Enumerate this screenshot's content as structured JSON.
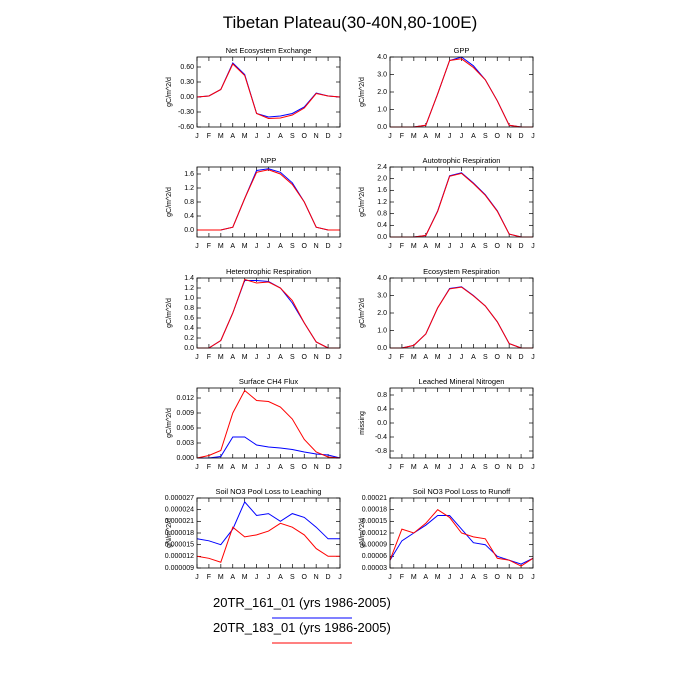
{
  "title": "Tibetan Plateau(30-40N,80-100E)",
  "legend": [
    {
      "name": "20TR_161_01 (yrs 1986-2005)",
      "color": "#0000ff"
    },
    {
      "name": "20TR_183_01 (yrs 1986-2005)",
      "color": "#ff0000"
    }
  ],
  "chart_data": [
    {
      "type": "line",
      "title": "Net Ecosystem Exchange",
      "ylabel": "gC/m^2/d",
      "categories": [
        "J",
        "F",
        "M",
        "A",
        "M",
        "J",
        "J",
        "A",
        "S",
        "O",
        "N",
        "D",
        "J"
      ],
      "ylim": [
        -0.6,
        0.8
      ],
      "yticks": [
        {
          "value": -0.6,
          "label": "-0.60"
        },
        {
          "value": -0.3,
          "label": "-0.30"
        },
        {
          "value": 0,
          "label": "0.00"
        },
        {
          "value": 0.3,
          "label": "0.30"
        },
        {
          "value": 0.6,
          "label": "0.60"
        }
      ],
      "series": [
        {
          "values": [
            0,
            0.02,
            0.15,
            0.68,
            0.45,
            -0.33,
            -0.4,
            -0.38,
            -0.33,
            -0.2,
            0.08,
            0.02,
            0
          ]
        },
        {
          "values": [
            0,
            0.02,
            0.15,
            0.66,
            0.43,
            -0.33,
            -0.43,
            -0.42,
            -0.36,
            -0.22,
            0.07,
            0.02,
            0
          ]
        }
      ]
    },
    {
      "type": "line",
      "title": "GPP",
      "ylabel": "gC/m^2/d",
      "categories": [
        "J",
        "F",
        "M",
        "A",
        "M",
        "J",
        "J",
        "A",
        "S",
        "O",
        "N",
        "D",
        "J"
      ],
      "ylim": [
        0,
        4
      ],
      "yticks": [
        {
          "value": 0,
          "label": "0.0"
        },
        {
          "value": 1,
          "label": "1.0"
        },
        {
          "value": 2,
          "label": "2.0"
        },
        {
          "value": 3,
          "label": "3.0"
        },
        {
          "value": 4,
          "label": "4.0"
        }
      ],
      "series": [
        {
          "values": [
            0,
            0,
            0,
            0.1,
            1.9,
            3.8,
            4.0,
            3.5,
            2.7,
            1.5,
            0.1,
            0,
            0
          ]
        },
        {
          "values": [
            0,
            0,
            0,
            0.1,
            1.9,
            3.8,
            3.9,
            3.4,
            2.7,
            1.5,
            0.1,
            0,
            0
          ]
        }
      ]
    },
    {
      "type": "line",
      "title": "NPP",
      "ylabel": "gC/m^2/d",
      "categories": [
        "J",
        "F",
        "M",
        "A",
        "M",
        "J",
        "J",
        "A",
        "S",
        "O",
        "N",
        "D",
        "J"
      ],
      "ylim": [
        -0.2,
        1.8
      ],
      "yticks": [
        {
          "value": 0,
          "label": "0.0"
        },
        0.4,
        0.8,
        1.2,
        1.6
      ],
      "series": [
        {
          "values": [
            0,
            0,
            0,
            0.08,
            0.9,
            1.7,
            1.75,
            1.65,
            1.35,
            0.8,
            0.08,
            0,
            0
          ]
        },
        {
          "values": [
            0,
            0,
            0,
            0.08,
            0.9,
            1.65,
            1.72,
            1.6,
            1.3,
            0.8,
            0.08,
            0,
            0
          ]
        }
      ]
    },
    {
      "type": "line",
      "title": "Autotrophic Respiration",
      "ylabel": "gC/m^2/d",
      "categories": [
        "J",
        "F",
        "M",
        "A",
        "M",
        "J",
        "J",
        "A",
        "S",
        "O",
        "N",
        "D",
        "J"
      ],
      "ylim": [
        0,
        2.4
      ],
      "yticks": [
        {
          "value": 0,
          "label": "0.0"
        },
        0.4,
        0.8,
        1.2,
        1.6,
        {
          "value": 2,
          "label": "2.0"
        },
        2.4
      ],
      "series": [
        {
          "values": [
            0,
            0,
            0,
            0.05,
            0.9,
            2.1,
            2.2,
            1.85,
            1.45,
            0.9,
            0.1,
            0,
            0
          ]
        },
        {
          "values": [
            0,
            0,
            0,
            0.05,
            0.88,
            2.08,
            2.18,
            1.83,
            1.43,
            0.88,
            0.1,
            0,
            0
          ]
        }
      ]
    },
    {
      "type": "line",
      "title": "Heterotrophic Respiration",
      "ylabel": "gC/m^2/d",
      "categories": [
        "J",
        "F",
        "M",
        "A",
        "M",
        "J",
        "J",
        "A",
        "S",
        "O",
        "N",
        "D",
        "J"
      ],
      "ylim": [
        0,
        1.4
      ],
      "yticks": [
        {
          "value": 0,
          "label": "0.0"
        },
        0.2,
        0.4,
        0.6,
        0.8,
        {
          "value": 1,
          "label": "1.0"
        },
        1.2,
        1.4
      ],
      "series": [
        {
          "values": [
            0,
            0,
            0.15,
            0.7,
            1.35,
            1.35,
            1.33,
            1.2,
            0.9,
            0.5,
            0.12,
            0,
            0
          ]
        },
        {
          "values": [
            0,
            0,
            0.15,
            0.7,
            1.37,
            1.3,
            1.32,
            1.2,
            0.95,
            0.5,
            0.12,
            0,
            0
          ]
        }
      ]
    },
    {
      "type": "line",
      "title": "Ecosystem Respiration",
      "ylabel": "gC/m^2/d",
      "categories": [
        "J",
        "F",
        "M",
        "A",
        "M",
        "J",
        "J",
        "A",
        "S",
        "O",
        "N",
        "D",
        "J"
      ],
      "ylim": [
        0,
        4
      ],
      "yticks": [
        {
          "value": 0,
          "label": "0.0"
        },
        {
          "value": 1,
          "label": "1.0"
        },
        {
          "value": 2,
          "label": "2.0"
        },
        {
          "value": 3,
          "label": "3.0"
        },
        {
          "value": 4,
          "label": "4.0"
        }
      ],
      "series": [
        {
          "values": [
            0,
            0,
            0.15,
            0.8,
            2.3,
            3.4,
            3.5,
            3.0,
            2.4,
            1.5,
            0.25,
            0,
            0
          ]
        },
        {
          "values": [
            0,
            0,
            0.15,
            0.8,
            2.3,
            3.38,
            3.48,
            2.98,
            2.4,
            1.5,
            0.25,
            0,
            0
          ]
        }
      ]
    },
    {
      "type": "line",
      "title": "Surface CH4 Flux",
      "ylabel": "gC/m^2/d",
      "categories": [
        "J",
        "F",
        "M",
        "A",
        "M",
        "J",
        "J",
        "A",
        "S",
        "O",
        "N",
        "D",
        "J"
      ],
      "ylim": [
        0,
        0.014
      ],
      "yticks": [
        {
          "value": 0,
          "label": "0.000"
        },
        0.003,
        0.006,
        0.009,
        0.012
      ],
      "series": [
        {
          "values": [
            0,
            0,
            0.0003,
            0.0042,
            0.0042,
            0.0026,
            0.0022,
            0.002,
            0.0017,
            0.0012,
            0.0008,
            0.0006,
            0
          ]
        },
        {
          "values": [
            0,
            0.0005,
            0.0015,
            0.009,
            0.0135,
            0.0115,
            0.0113,
            0.0102,
            0.0078,
            0.0037,
            0.0012,
            0.0002,
            0
          ]
        }
      ]
    },
    {
      "type": "line",
      "title": "Leached Mineral Nitrogen",
      "ylabel": "missing",
      "categories": [
        "J",
        "F",
        "M",
        "A",
        "M",
        "J",
        "J",
        "A",
        "S",
        "O",
        "N",
        "D",
        "J"
      ],
      "ylim": [
        -1,
        1
      ],
      "yticks": [
        -0.8,
        -0.4,
        {
          "value": 0,
          "label": "0.0"
        },
        0.4,
        0.8
      ],
      "series": []
    },
    {
      "type": "line",
      "title": "Soil NO3 Pool Loss to Leaching",
      "ylabel": "gN/m^2/d",
      "categories": [
        "J",
        "F",
        "M",
        "A",
        "M",
        "J",
        "J",
        "A",
        "S",
        "O",
        "N",
        "D",
        "J"
      ],
      "ylim": [
        9e-06,
        2.7e-05
      ],
      "yticks": [
        9e-06,
        1.2e-05,
        1.5e-05,
        1.8e-05,
        2.1e-05,
        2.4e-05,
        2.7e-05
      ],
      "series": [
        {
          "values": [
            1.65e-05,
            1.6e-05,
            1.5e-05,
            1.9e-05,
            2.6e-05,
            2.25e-05,
            2.3e-05,
            2.1e-05,
            2.3e-05,
            2.2e-05,
            1.95e-05,
            1.65e-05,
            1.65e-05
          ]
        },
        {
          "values": [
            1.2e-05,
            1.15e-05,
            1.05e-05,
            1.95e-05,
            1.7e-05,
            1.75e-05,
            1.85e-05,
            2.05e-05,
            1.95e-05,
            1.75e-05,
            1.4e-05,
            1.2e-05,
            1.2e-05
          ]
        }
      ]
    },
    {
      "type": "line",
      "title": "Soil NO3 Pool Loss to Runoff",
      "ylabel": "gN/m^2/d",
      "categories": [
        "J",
        "F",
        "M",
        "A",
        "M",
        "J",
        "J",
        "A",
        "S",
        "O",
        "N",
        "D",
        "J"
      ],
      "ylim": [
        3e-05,
        0.00021
      ],
      "yticks": [
        3e-05,
        6e-05,
        9e-05,
        0.00012,
        0.00015,
        0.00018,
        0.00021
      ],
      "series": [
        {
          "values": [
            5e-05,
            0.0001,
            0.00012,
            0.00014,
            0.000165,
            0.000165,
            0.00013,
            9.5e-05,
            9e-05,
            6e-05,
            5e-05,
            4e-05,
            5.5e-05
          ]
        },
        {
          "values": [
            5e-05,
            0.00013,
            0.00012,
            0.000145,
            0.00018,
            0.00016,
            0.00012,
            0.00011,
            0.000105,
            5.5e-05,
            5e-05,
            3.5e-05,
            5.5e-05
          ]
        }
      ]
    }
  ]
}
